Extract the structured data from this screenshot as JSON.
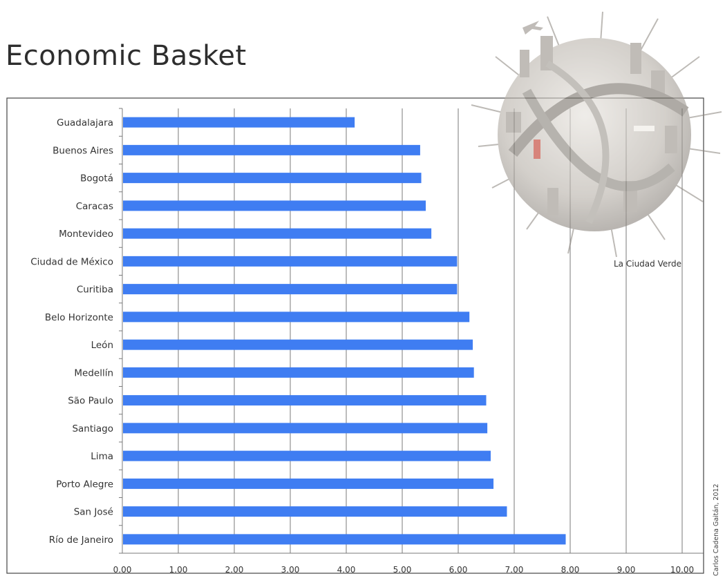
{
  "header": {
    "title": "Economic Basket"
  },
  "branding": {
    "tagline": "La Ciudad Verde",
    "credit": "Carlos Cadena Gaitán, 2012"
  },
  "colors": {
    "bar": "#3f7df2",
    "grid": "#7a7a7a",
    "frame": "#444444",
    "text": "#333333"
  },
  "chart_data": {
    "type": "bar",
    "orientation": "horizontal",
    "title": "",
    "xlabel": "",
    "ylabel": "",
    "xlim": [
      0,
      10
    ],
    "grid": true,
    "legend": "none",
    "x_ticks": [
      "0.00",
      "1.00",
      "2.00",
      "3.00",
      "4.00",
      "5.00",
      "6.00",
      "7.00",
      "8.00",
      "9.00",
      "10.00"
    ],
    "categories": [
      "Guadalajara",
      "Buenos Aires",
      "Bogotá",
      "Caracas",
      "Montevideo",
      "Ciudad de México",
      "Curitiba",
      "Belo Horizonte",
      "León",
      "Medellín",
      "São Paulo",
      "Santiago",
      "Lima",
      "Porto Alegre",
      "San José",
      "Río de Janeiro"
    ],
    "values": [
      4.15,
      5.32,
      5.34,
      5.42,
      5.52,
      5.98,
      5.98,
      6.2,
      6.26,
      6.28,
      6.5,
      6.52,
      6.58,
      6.63,
      6.87,
      7.92
    ]
  }
}
